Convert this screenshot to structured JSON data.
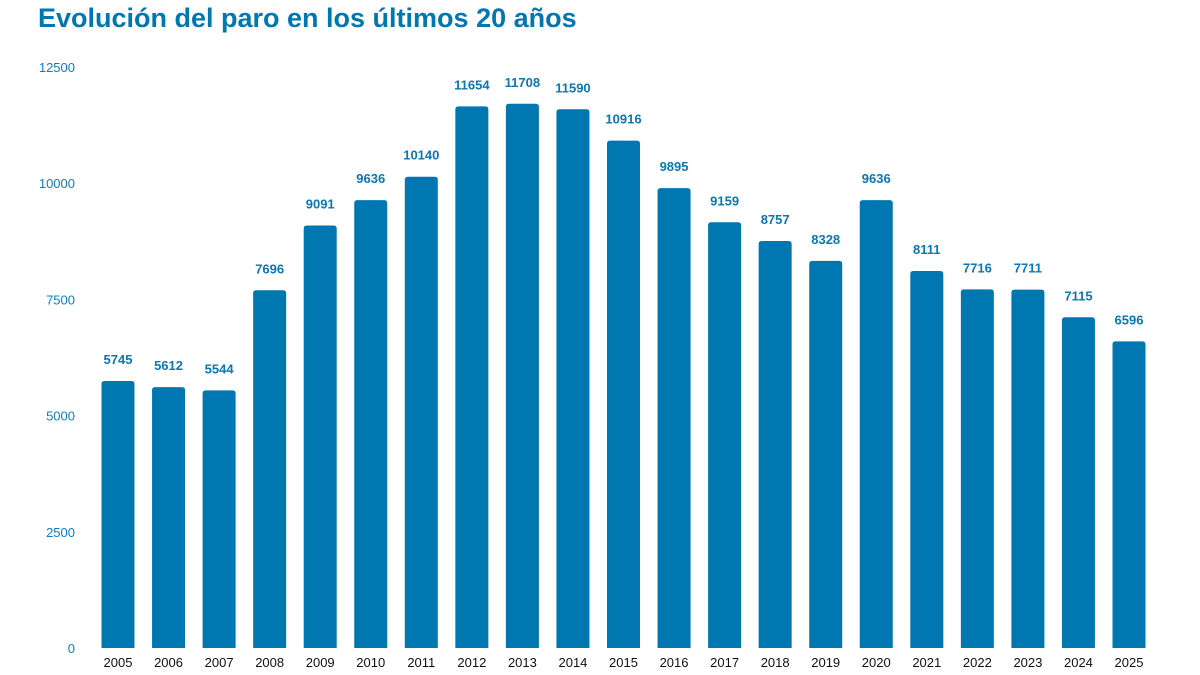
{
  "title": "Evolución del paro en los últimos 20 años",
  "chart_data": {
    "type": "bar",
    "title": "Evolución del paro en los últimos 20 años",
    "xlabel": "",
    "ylabel": "",
    "categories": [
      "2005",
      "2006",
      "2007",
      "2008",
      "2009",
      "2010",
      "2011",
      "2012",
      "2013",
      "2014",
      "2015",
      "2016",
      "2017",
      "2018",
      "2019",
      "2020",
      "2021",
      "2022",
      "2023",
      "2024",
      "2025"
    ],
    "values": [
      5745,
      5612,
      5544,
      7696,
      9091,
      9636,
      10140,
      11654,
      11708,
      11590,
      10916,
      9895,
      9159,
      8757,
      8328,
      9636,
      8111,
      7716,
      7711,
      7115,
      6596
    ],
    "ylim": [
      0,
      12500
    ],
    "yticks": [
      0,
      2500,
      5000,
      7500,
      10000,
      12500
    ],
    "grid": false,
    "legend": "none",
    "bar_color": "#0077b0",
    "label_color": "#0a77b5"
  }
}
